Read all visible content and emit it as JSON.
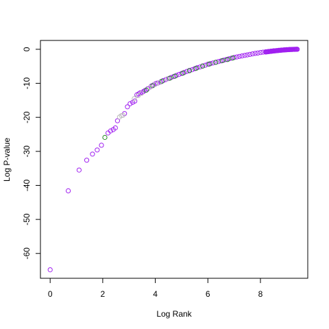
{
  "chart_data": {
    "type": "scatter",
    "title": "",
    "xlabel": "Log Rank",
    "ylabel": "Log P-value",
    "xlim": [
      -0.37,
      9.8
    ],
    "ylim": [
      -67.3,
      2.6
    ],
    "x_ticks": [
      0,
      2,
      4,
      6,
      8
    ],
    "y_ticks": [
      0,
      -10,
      -20,
      -30,
      -40,
      -50,
      -60
    ],
    "grid": false,
    "legend": "none",
    "marker": "open-circle",
    "colors": {
      "purple": "#a020f0",
      "green": "#228b22",
      "gray": "#bebebe"
    },
    "series": [
      {
        "points": [
          [
            0.0,
            -64.8
          ],
          [
            0.69,
            -41.6
          ],
          [
            1.1,
            -35.5
          ],
          [
            1.39,
            -32.6
          ],
          [
            1.61,
            -30.8
          ],
          [
            1.79,
            -29.6
          ],
          [
            1.95,
            -28.2
          ],
          [
            2.2,
            -24.6
          ],
          [
            2.3,
            -24.0
          ],
          [
            2.4,
            -23.6
          ],
          [
            2.48,
            -23.1
          ],
          [
            2.56,
            -21.0
          ],
          [
            2.83,
            -18.9
          ],
          [
            2.94,
            -16.9
          ],
          [
            3.04,
            -16.0
          ],
          [
            3.14,
            -15.6
          ],
          [
            3.22,
            -15.2
          ],
          [
            3.3,
            -13.4
          ],
          [
            3.37,
            -13.1
          ],
          [
            3.43,
            -12.8
          ],
          [
            3.5,
            -12.7
          ],
          [
            3.55,
            -12.4
          ],
          [
            3.61,
            -12.1
          ],
          [
            3.71,
            -11.6
          ],
          [
            3.85,
            -10.8
          ],
          [
            3.93,
            -10.5
          ],
          [
            4.01,
            -10.1
          ],
          [
            4.09,
            -9.9
          ],
          [
            4.2,
            -9.6
          ],
          [
            4.3,
            -9.2
          ],
          [
            4.4,
            -8.9
          ],
          [
            4.5,
            -8.6
          ],
          [
            4.6,
            -8.3
          ],
          [
            4.7,
            -8.0
          ],
          [
            4.8,
            -7.7
          ],
          [
            4.9,
            -7.4
          ],
          [
            5.0,
            -7.1
          ],
          [
            5.1,
            -6.8
          ],
          [
            5.2,
            -6.5
          ],
          [
            5.3,
            -6.2
          ],
          [
            5.4,
            -6.0
          ],
          [
            5.5,
            -5.7
          ],
          [
            5.6,
            -5.4
          ],
          [
            5.7,
            -5.2
          ],
          [
            5.8,
            -4.9
          ],
          [
            5.9,
            -4.7
          ],
          [
            6.0,
            -4.4
          ],
          [
            6.1,
            -4.2
          ],
          [
            6.2,
            -4.0
          ],
          [
            6.3,
            -3.8
          ],
          [
            6.4,
            -3.6
          ],
          [
            6.5,
            -3.4
          ],
          [
            6.6,
            -3.2
          ],
          [
            6.7,
            -3.0
          ],
          [
            6.8,
            -2.8
          ],
          [
            6.9,
            -2.6
          ],
          [
            7.0,
            -2.4
          ],
          [
            7.1,
            -2.25
          ],
          [
            7.2,
            -2.1
          ],
          [
            7.3,
            -1.95
          ],
          [
            7.4,
            -1.8
          ],
          [
            7.5,
            -1.65
          ],
          [
            7.6,
            -1.5
          ],
          [
            7.7,
            -1.35
          ],
          [
            7.8,
            -1.2
          ],
          [
            7.9,
            -1.1
          ],
          [
            8.0,
            -0.95
          ],
          [
            8.1,
            -0.85
          ],
          [
            8.2,
            -0.75
          ],
          [
            8.3,
            -0.65
          ],
          [
            8.4,
            -0.55
          ],
          [
            8.5,
            -0.45
          ],
          [
            8.6,
            -0.38
          ],
          [
            8.7,
            -0.3
          ],
          [
            8.8,
            -0.22
          ],
          [
            8.9,
            -0.16
          ],
          [
            9.0,
            -0.1
          ],
          [
            9.1,
            -0.06
          ],
          [
            9.2,
            -0.03
          ],
          [
            9.3,
            -0.01
          ],
          [
            9.4,
            0.0
          ]
        ]
      },
      {
        "points": [
          [
            2.08,
            -25.9
          ],
          [
            3.66,
            -12.0
          ],
          [
            3.9,
            -10.7
          ],
          [
            4.25,
            -9.4
          ],
          [
            4.55,
            -8.5
          ],
          [
            4.75,
            -7.9
          ],
          [
            5.05,
            -7.0
          ],
          [
            5.3,
            -6.3
          ],
          [
            5.55,
            -5.6
          ],
          [
            5.8,
            -4.95
          ],
          [
            6.05,
            -4.35
          ],
          [
            6.3,
            -3.85
          ],
          [
            6.55,
            -3.35
          ],
          [
            6.75,
            -3.0
          ],
          [
            6.95,
            -2.55
          ]
        ]
      },
      {
        "points": [
          [
            2.64,
            -19.9
          ],
          [
            2.71,
            -19.5
          ],
          [
            2.77,
            -19.4
          ],
          [
            3.2,
            -14.5
          ],
          [
            3.35,
            -13.6
          ],
          [
            3.48,
            -12.9
          ],
          [
            3.8,
            -11.2
          ],
          [
            4.0,
            -10.3
          ],
          [
            4.15,
            -9.8
          ],
          [
            4.45,
            -8.7
          ]
        ]
      }
    ]
  }
}
